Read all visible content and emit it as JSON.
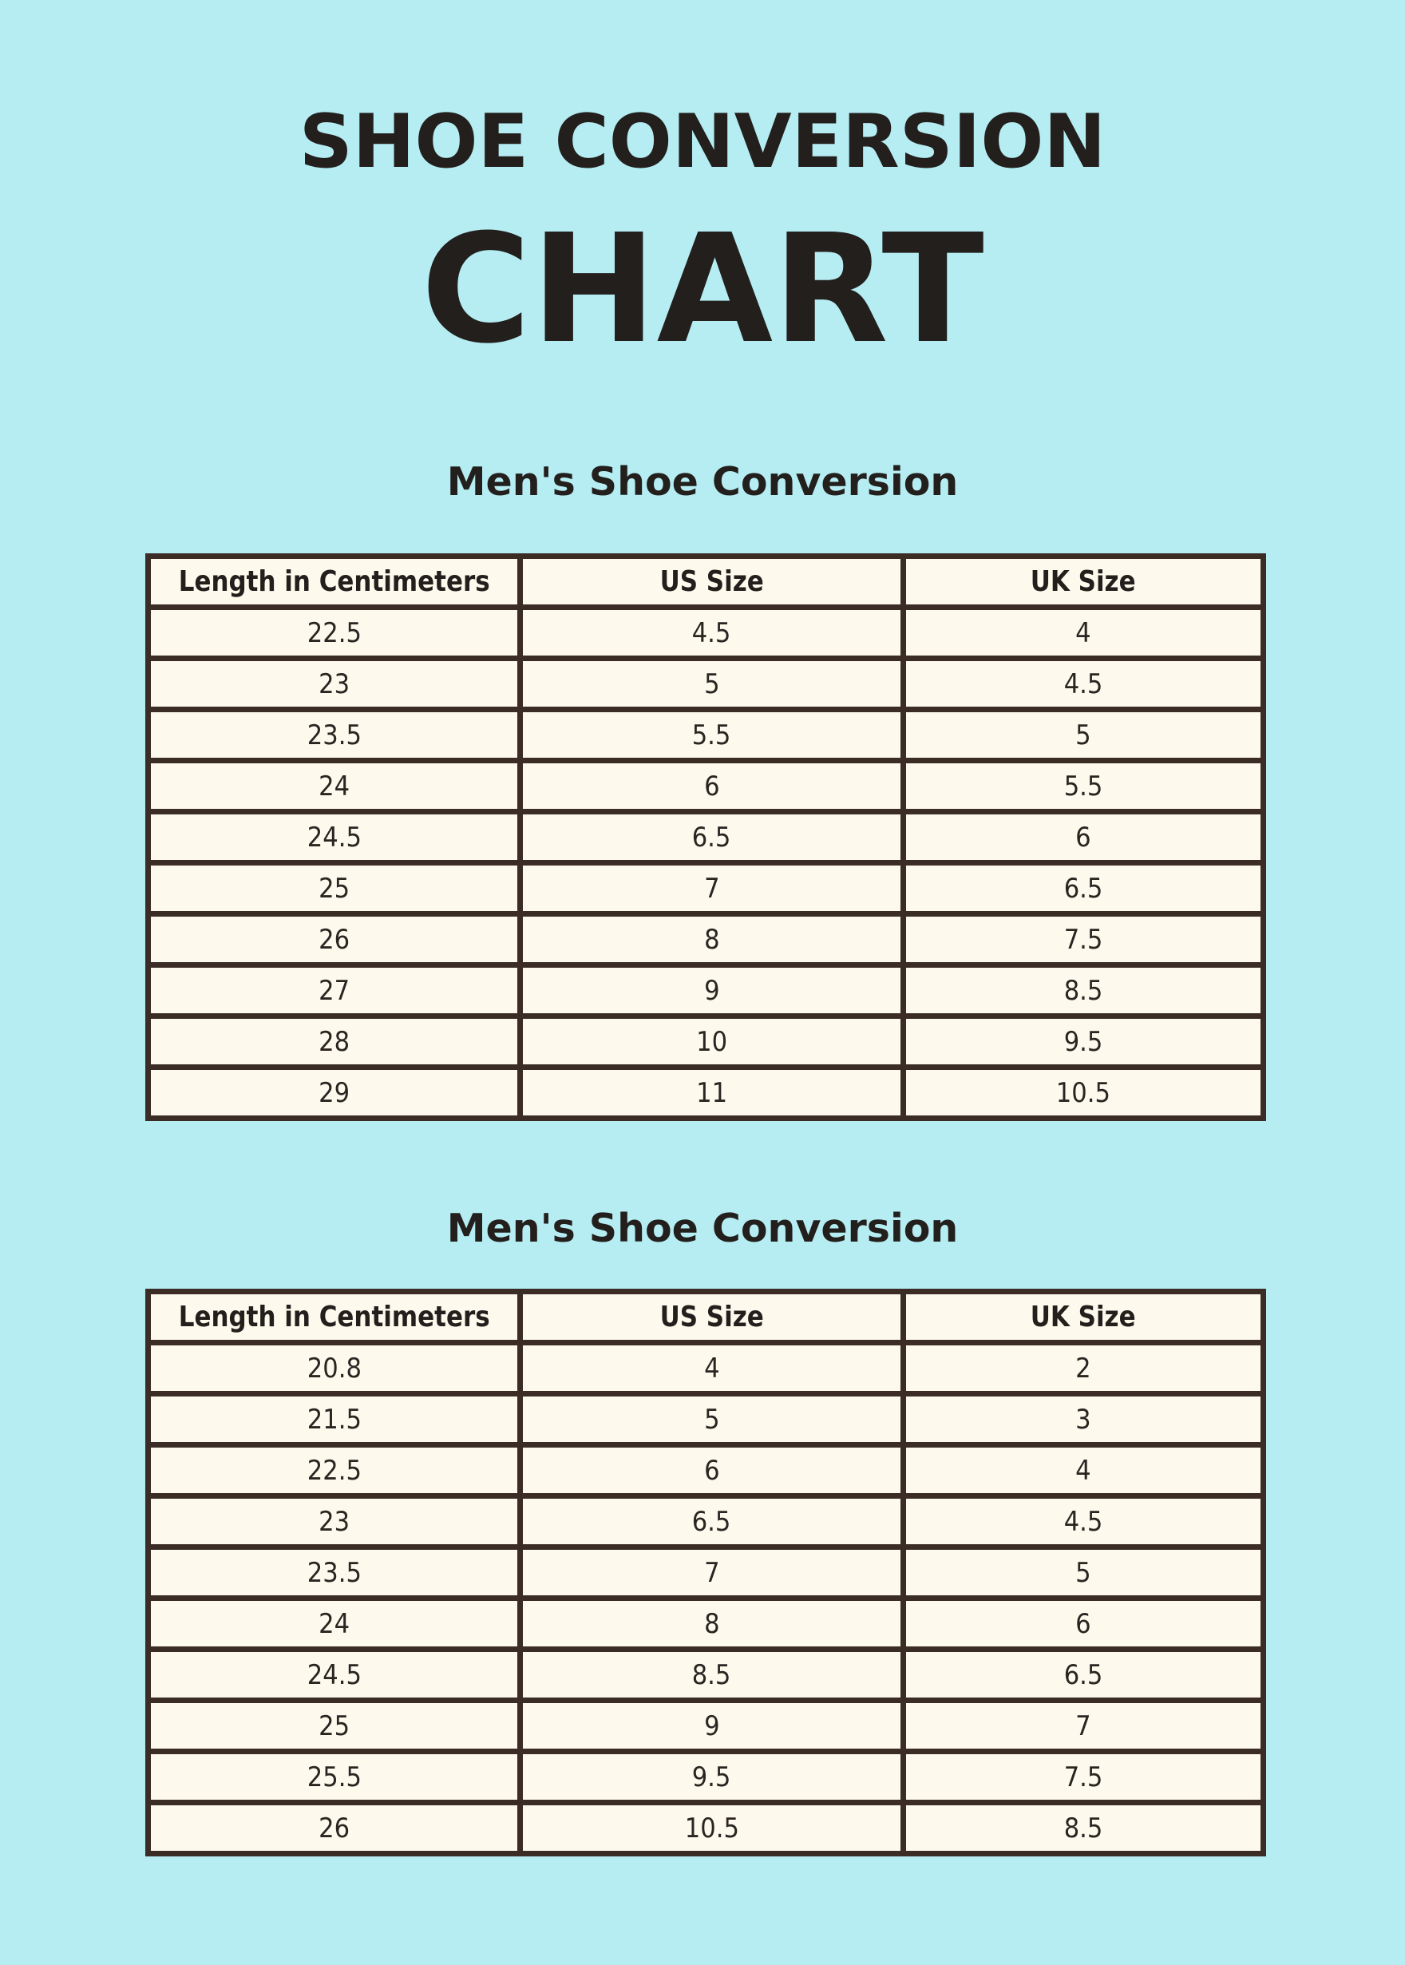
{
  "page": {
    "title_line1": "SHOE CONVERSION",
    "title_line2": "CHART"
  },
  "colors": {
    "background": "#b5edf3",
    "cell_background": "#fdf9ec",
    "table_border": "#3b2d26",
    "text": "#231f1d"
  },
  "sections": [
    {
      "heading": "Men's Shoe Conversion",
      "columns": [
        "Length in Centimeters",
        "US Size",
        "UK Size"
      ],
      "rows": [
        [
          "22.5",
          "4.5",
          "4"
        ],
        [
          "23",
          "5",
          "4.5"
        ],
        [
          "23.5",
          "5.5",
          "5"
        ],
        [
          "24",
          "6",
          "5.5"
        ],
        [
          "24.5",
          "6.5",
          "6"
        ],
        [
          "25",
          "7",
          "6.5"
        ],
        [
          "26",
          "8",
          "7.5"
        ],
        [
          "27",
          "9",
          "8.5"
        ],
        [
          "28",
          "10",
          "9.5"
        ],
        [
          "29",
          "11",
          "10.5"
        ]
      ]
    },
    {
      "heading": "Men's Shoe Conversion",
      "columns": [
        "Length in Centimeters",
        "US Size",
        "UK Size"
      ],
      "rows": [
        [
          "20.8",
          "4",
          "2"
        ],
        [
          "21.5",
          "5",
          "3"
        ],
        [
          "22.5",
          "6",
          "4"
        ],
        [
          "23",
          "6.5",
          "4.5"
        ],
        [
          "23.5",
          "7",
          "5"
        ],
        [
          "24",
          "8",
          "6"
        ],
        [
          "24.5",
          "8.5",
          "6.5"
        ],
        [
          "25",
          "9",
          "7"
        ],
        [
          "25.5",
          "9.5",
          "7.5"
        ],
        [
          "26",
          "10.5",
          "8.5"
        ]
      ]
    }
  ]
}
